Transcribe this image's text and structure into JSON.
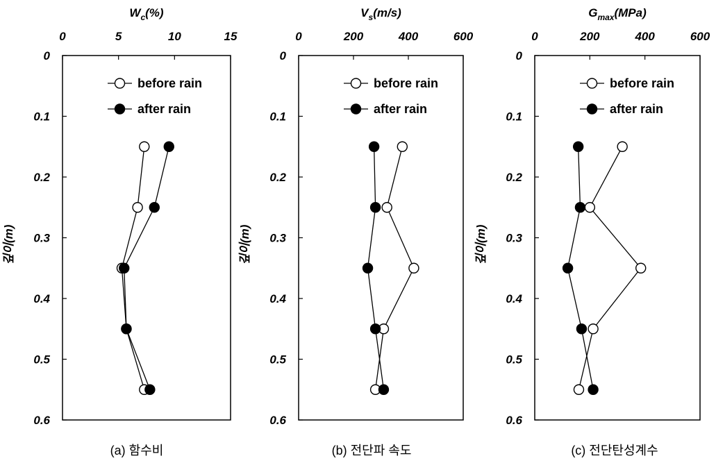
{
  "chart_data": [
    {
      "type": "line",
      "caption": "(a) 함수비",
      "xlabel": "W",
      "xlabel_sub": "c",
      "xlabel_unit": "(%)",
      "ylabel": "깊이(m)",
      "xlim": [
        0,
        15
      ],
      "ylim": [
        0,
        0.6
      ],
      "xticks": [
        0,
        5,
        10,
        15
      ],
      "yticks": [
        0,
        0.1,
        0.2,
        0.3,
        0.4,
        0.5,
        0.6
      ],
      "xtick_labels": [
        "0",
        "5",
        "10",
        "15"
      ],
      "ytick_labels": [
        "0",
        "0.1",
        "0.2",
        "0.3",
        "0.4",
        "0.5",
        "0.6"
      ],
      "legend_position": "top-right",
      "series": [
        {
          "name": "before rain",
          "marker": "open-circle",
          "x": [
            7.3,
            6.7,
            5.3,
            5.7,
            7.3
          ],
          "y": [
            0.15,
            0.25,
            0.35,
            0.45,
            0.55
          ]
        },
        {
          "name": "after rain",
          "marker": "filled-circle",
          "x": [
            9.5,
            8.2,
            5.5,
            5.7,
            7.8
          ],
          "y": [
            0.15,
            0.25,
            0.35,
            0.45,
            0.55
          ]
        }
      ]
    },
    {
      "type": "line",
      "caption": "(b) 전단파 속도",
      "xlabel": "V",
      "xlabel_sub": "s",
      "xlabel_unit": "(m/s)",
      "ylabel": "깊이(m)",
      "xlim": [
        0,
        600
      ],
      "ylim": [
        0,
        0.6
      ],
      "xticks": [
        0,
        200,
        400,
        600
      ],
      "yticks": [
        0,
        0.1,
        0.2,
        0.3,
        0.4,
        0.5,
        0.6
      ],
      "xtick_labels": [
        "0",
        "200",
        "400",
        "600"
      ],
      "ytick_labels": [
        "0",
        "0.1",
        "0.2",
        "0.3",
        "0.4",
        "0.5",
        "0.6"
      ],
      "legend_position": "top-right",
      "series": [
        {
          "name": "before rain",
          "marker": "open-circle",
          "x": [
            378,
            322,
            420,
            310,
            280
          ],
          "y": [
            0.15,
            0.25,
            0.35,
            0.45,
            0.55
          ]
        },
        {
          "name": "after rain",
          "marker": "filled-circle",
          "x": [
            275,
            280,
            252,
            280,
            310
          ],
          "y": [
            0.15,
            0.25,
            0.35,
            0.45,
            0.55
          ]
        }
      ]
    },
    {
      "type": "line",
      "caption": "(c) 전단탄성계수",
      "xlabel": "G",
      "xlabel_sub": "max",
      "xlabel_unit": "(MPa)",
      "ylabel": "깊이(m)",
      "xlim": [
        0,
        600
      ],
      "ylim": [
        0,
        0.6
      ],
      "xticks": [
        0,
        200,
        400,
        600
      ],
      "yticks": [
        0,
        0.1,
        0.2,
        0.3,
        0.4,
        0.5,
        0.6
      ],
      "xtick_labels": [
        "0",
        "200",
        "400",
        "600"
      ],
      "ytick_labels": [
        "0",
        "0.1",
        "0.2",
        "0.3",
        "0.4",
        "0.5",
        "0.6"
      ],
      "legend_position": "top-right",
      "series": [
        {
          "name": "before rain",
          "marker": "open-circle",
          "x": [
            318,
            200,
            385,
            212,
            160
          ],
          "y": [
            0.15,
            0.25,
            0.35,
            0.45,
            0.55
          ]
        },
        {
          "name": "after rain",
          "marker": "filled-circle",
          "x": [
            158,
            165,
            120,
            170,
            212
          ],
          "y": [
            0.15,
            0.25,
            0.35,
            0.45,
            0.55
          ]
        }
      ]
    }
  ]
}
